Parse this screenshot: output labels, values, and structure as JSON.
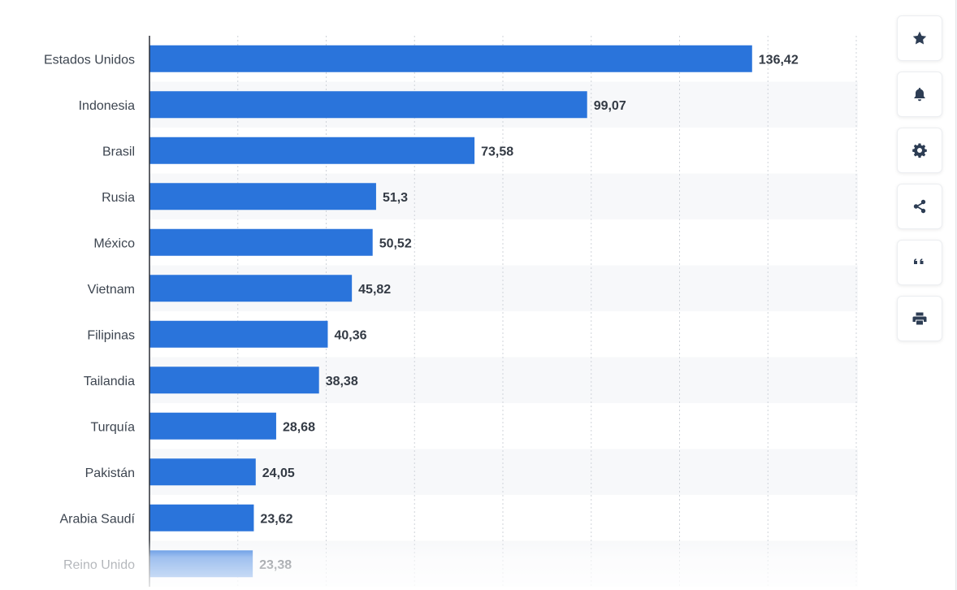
{
  "chart_data": {
    "type": "bar",
    "orientation": "horizontal",
    "categories": [
      "Estados Unidos",
      "Indonesia",
      "Brasil",
      "Rusia",
      "México",
      "Vietnam",
      "Filipinas",
      "Tailandia",
      "Turquía",
      "Pakistán",
      "Arabia Saudí",
      "Reino Unido"
    ],
    "values": [
      136.42,
      99.07,
      73.58,
      51.3,
      50.52,
      45.82,
      40.36,
      38.38,
      28.68,
      24.05,
      23.62,
      23.38
    ],
    "value_labels": [
      "136,42",
      "99,07",
      "73,58",
      "51,3",
      "50,52",
      "45,82",
      "40,36",
      "38,38",
      "28,68",
      "24,05",
      "23,62",
      "23,38"
    ],
    "xlim": [
      0,
      160
    ],
    "grid": "vertical-dotted",
    "bar_color": "#2a74db"
  },
  "toolbar": {
    "buttons": [
      {
        "icon": "star-icon",
        "name": "favorite-button"
      },
      {
        "icon": "bell-icon",
        "name": "notification-button"
      },
      {
        "icon": "gear-icon",
        "name": "settings-button"
      },
      {
        "icon": "share-icon",
        "name": "share-button"
      },
      {
        "icon": "quote-icon",
        "name": "cite-button"
      },
      {
        "icon": "print-icon",
        "name": "print-button"
      }
    ]
  }
}
